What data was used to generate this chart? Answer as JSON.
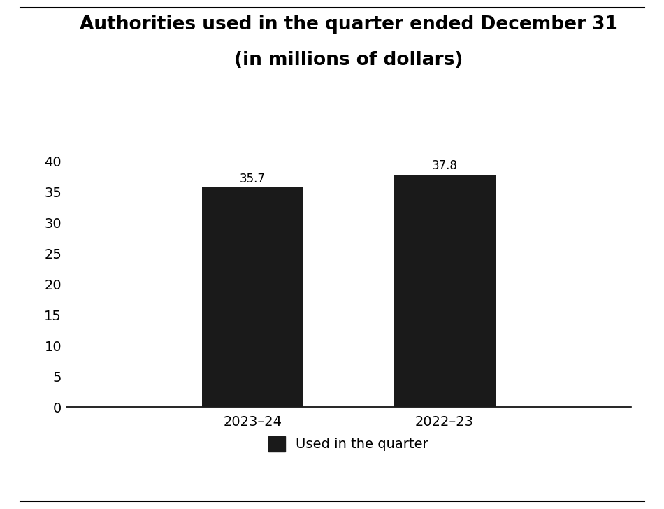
{
  "title_line1": "Authorities used in the quarter ended December 31",
  "title_line2": "(in millions of dollars)",
  "categories": [
    "2023–24",
    "2022–23"
  ],
  "values": [
    35.7,
    37.8
  ],
  "bar_color": "#1a1a1a",
  "bar_width": 0.18,
  "x_positions": [
    0.33,
    0.67
  ],
  "xlim": [
    0.0,
    1.0
  ],
  "ylim": [
    0,
    43
  ],
  "yticks": [
    0,
    5,
    10,
    15,
    20,
    25,
    30,
    35,
    40
  ],
  "legend_label": "Used in the quarter",
  "title_fontsize": 19,
  "tick_fontsize": 14,
  "label_fontsize": 14,
  "annotation_fontsize": 12,
  "background_color": "#ffffff"
}
